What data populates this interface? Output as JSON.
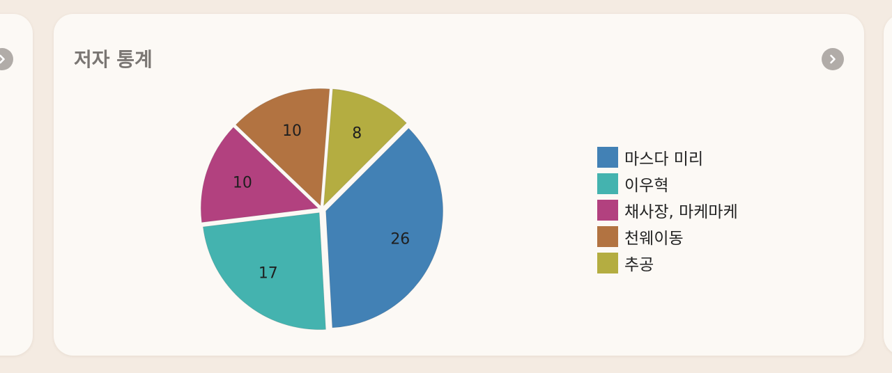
{
  "card": {
    "title": "저자 통계",
    "nav_icon": "chevron-right-icon"
  },
  "chart_data": {
    "type": "pie",
    "title": "저자 통계",
    "slices": [
      {
        "label": "마스다 미리",
        "value": 26,
        "color": "#4281b5"
      },
      {
        "label": "이우혁",
        "value": 17,
        "color": "#44b3af"
      },
      {
        "label": "채사장, 마케마케",
        "value": 10,
        "color": "#b2417f"
      },
      {
        "label": "천웨이동",
        "value": 10,
        "color": "#b27341"
      },
      {
        "label": "추공",
        "value": 8,
        "color": "#b4ad41"
      }
    ],
    "legend": "right",
    "exploded": true
  }
}
